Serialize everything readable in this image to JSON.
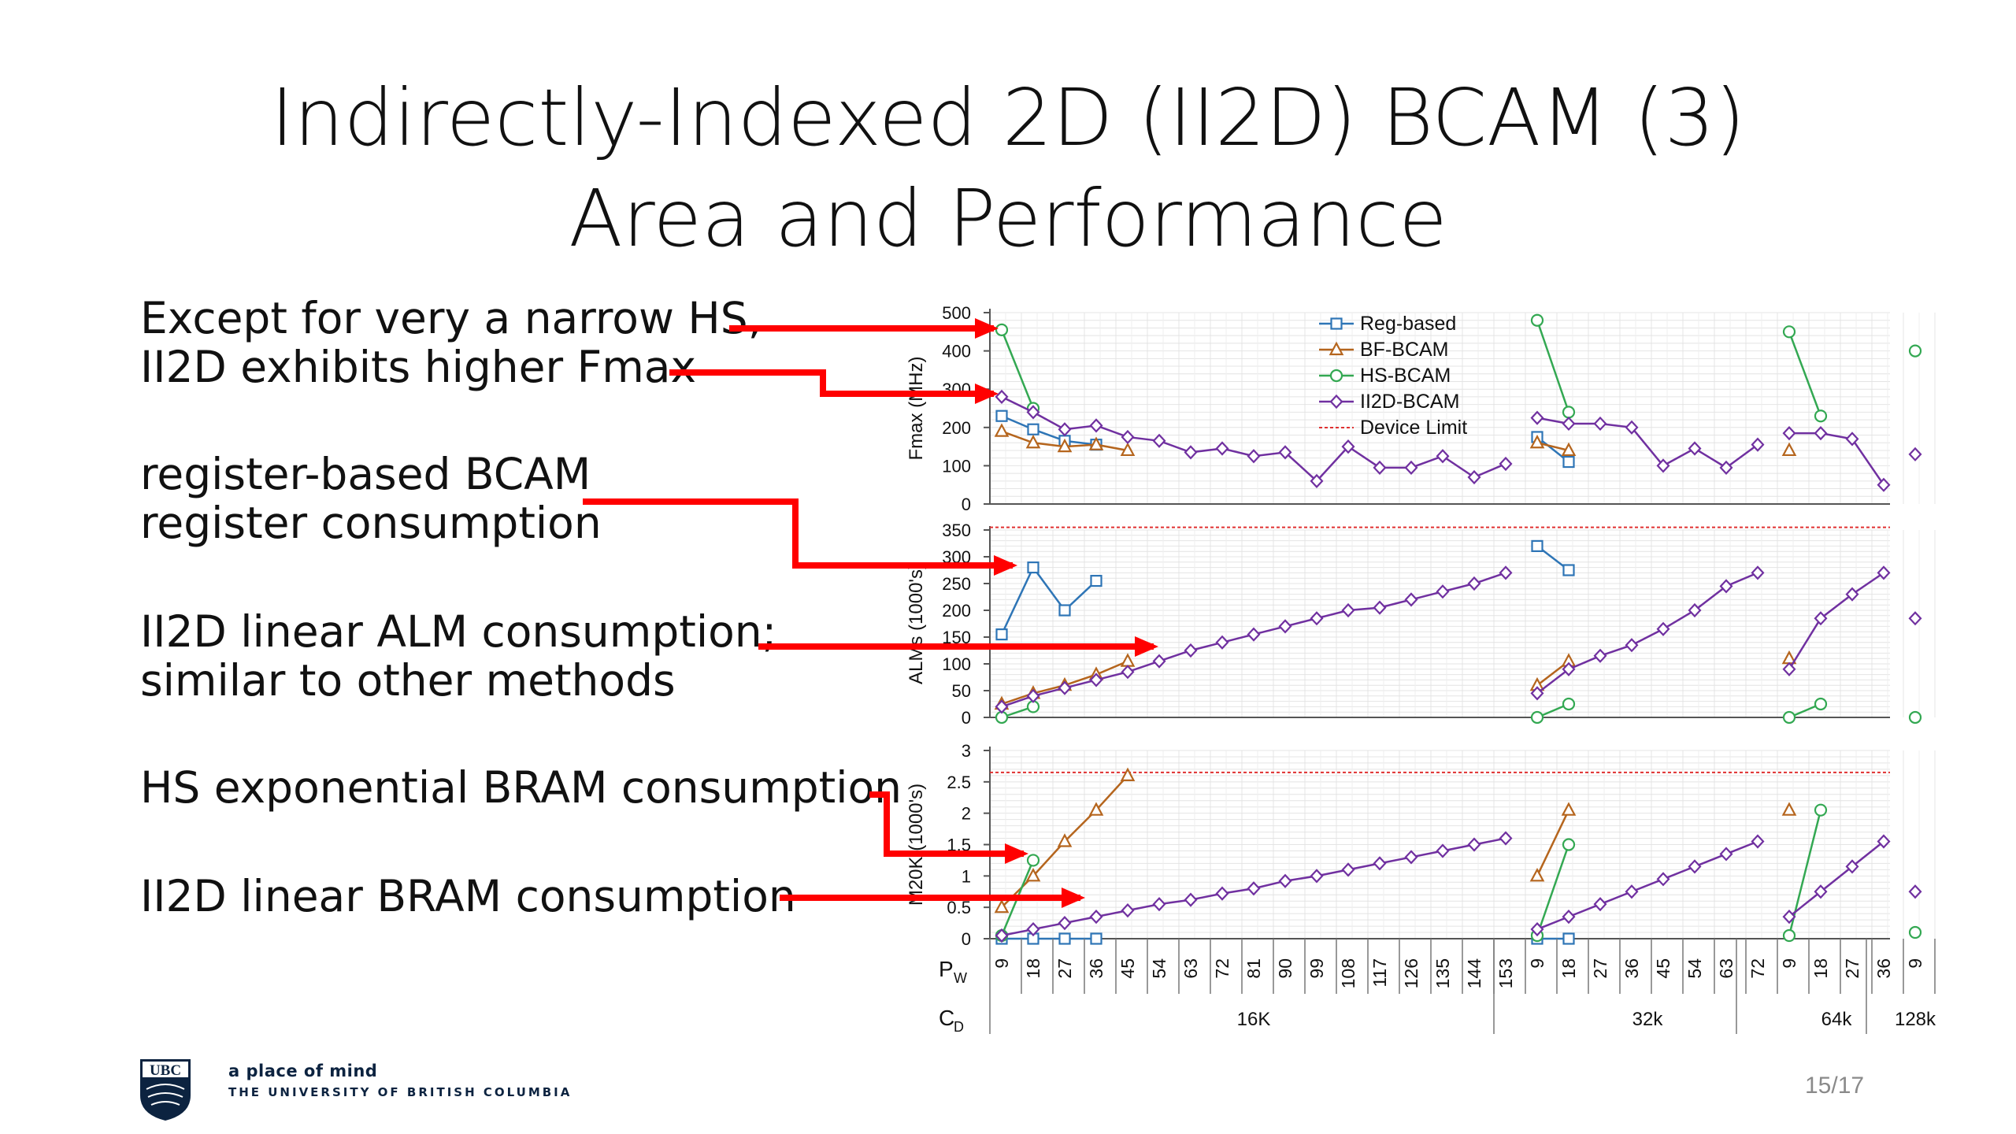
{
  "slide": {
    "title_line1": "Indirectly-Indexed 2D (II2D) BCAM (3)",
    "title_line2": "Area and Performance",
    "page_number": "15/17",
    "footer_tagline": "a place of mind",
    "footer_university": "THE UNIVERSITY OF BRITISH COLUMBIA",
    "logo_text": "UBC"
  },
  "annotations": [
    {
      "lines": [
        "Except for very a narrow HS,",
        "II2D exhibits higher Fmax"
      ]
    },
    {
      "lines": [
        "register-based BCAM",
        "register consumption"
      ]
    },
    {
      "lines": [
        "II2D linear ALM consumption;",
        "similar to other methods"
      ]
    },
    {
      "lines": [
        "HS exponential BRAM consumption"
      ]
    },
    {
      "lines": [
        "II2D linear BRAM consumption"
      ]
    }
  ],
  "chart_data": {
    "type": "line",
    "x_row_label": "P",
    "x_row_label_sub": "W",
    "group_row_label": "C",
    "group_row_label_sub": "D",
    "x_labels": [
      "9",
      "18",
      "27",
      "36",
      "45",
      "54",
      "63",
      "72",
      "81",
      "90",
      "99",
      "108",
      "117",
      "126",
      "135",
      "144",
      "153",
      "9",
      "18",
      "27",
      "36",
      "45",
      "54",
      "63",
      "72",
      "9",
      "18",
      "27",
      "36",
      "9"
    ],
    "groups": [
      {
        "label": "16K",
        "start": 0,
        "end": 16
      },
      {
        "label": "32k",
        "start": 17,
        "end": 24
      },
      {
        "label": "64k",
        "start": 25,
        "end": 28
      },
      {
        "label": "128k",
        "start": 29,
        "end": 29
      }
    ],
    "colors": {
      "Reg-based": "#2e75b6",
      "BF-BCAM": "#b5651d",
      "HS-BCAM": "#33a852",
      "II2D-BCAM": "#7030a0",
      "Device Limit": "#e03030",
      "grid": "#e4e4e4",
      "arrow": "#ff0000"
    },
    "legend": {
      "position": "top-right",
      "entries": [
        "Reg-based",
        "BF-BCAM",
        "HS-BCAM",
        "II2D-BCAM",
        "Device Limit"
      ]
    },
    "panels": [
      {
        "ylabel": "Fmax (MHz)",
        "ylim": [
          0,
          500
        ],
        "yticks": [
          "0",
          "100",
          "200",
          "300",
          "400",
          "500"
        ],
        "series": [
          {
            "name": "Reg-based",
            "segments": [
              [
                [
                  0,
                  230
                ],
                [
                  1,
                  195
                ],
                [
                  2,
                  165
                ],
                [
                  3,
                  155
                ]
              ],
              [
                [
                  17,
                  175
                ],
                [
                  18,
                  110
                ]
              ]
            ]
          },
          {
            "name": "BF-BCAM",
            "segments": [
              [
                [
                  0,
                  190
                ],
                [
                  1,
                  160
                ],
                [
                  2,
                  150
                ],
                [
                  3,
                  155
                ],
                [
                  4,
                  140
                ]
              ],
              [
                [
                  17,
                  160
                ],
                [
                  18,
                  140
                ]
              ],
              [
                [
                  25,
                  140
                ]
              ]
            ]
          },
          {
            "name": "HS-BCAM",
            "segments": [
              [
                [
                  0,
                  455
                ],
                [
                  1,
                  250
                ]
              ],
              [
                [
                  17,
                  480
                ],
                [
                  18,
                  240
                ]
              ],
              [
                [
                  25,
                  450
                ],
                [
                  26,
                  230
                ]
              ],
              [
                [
                  29,
                  400
                ]
              ]
            ]
          },
          {
            "name": "II2D-BCAM",
            "segments": [
              [
                [
                  0,
                  280
                ],
                [
                  1,
                  240
                ],
                [
                  2,
                  195
                ],
                [
                  3,
                  205
                ],
                [
                  4,
                  175
                ],
                [
                  5,
                  165
                ],
                [
                  6,
                  135
                ],
                [
                  7,
                  145
                ],
                [
                  8,
                  125
                ],
                [
                  9,
                  135
                ],
                [
                  10,
                  60
                ],
                [
                  11,
                  150
                ],
                [
                  12,
                  95
                ],
                [
                  13,
                  95
                ],
                [
                  14,
                  125
                ],
                [
                  15,
                  70
                ],
                [
                  16,
                  105
                ]
              ],
              [
                [
                  17,
                  225
                ],
                [
                  18,
                  210
                ],
                [
                  19,
                  210
                ],
                [
                  20,
                  200
                ],
                [
                  21,
                  100
                ],
                [
                  22,
                  145
                ],
                [
                  23,
                  95
                ],
                [
                  24,
                  155
                ]
              ],
              [
                [
                  25,
                  185
                ],
                [
                  26,
                  185
                ],
                [
                  27,
                  170
                ],
                [
                  28,
                  50
                ]
              ],
              [
                [
                  29,
                  130
                ]
              ]
            ]
          }
        ]
      },
      {
        "ylabel": "ALMs (1000's)",
        "ylim": [
          0,
          350
        ],
        "yticks": [
          "0",
          "50",
          "100",
          "150",
          "200",
          "250",
          "300",
          "350"
        ],
        "device_limit": 355,
        "series": [
          {
            "name": "Reg-based",
            "segments": [
              [
                [
                  0,
                  155
                ],
                [
                  1,
                  280
                ],
                [
                  2,
                  200
                ],
                [
                  3,
                  255
                ]
              ],
              [
                [
                  17,
                  320
                ],
                [
                  18,
                  275
                ]
              ]
            ]
          },
          {
            "name": "BF-BCAM",
            "segments": [
              [
                [
                  0,
                  25
                ],
                [
                  1,
                  45
                ],
                [
                  2,
                  60
                ],
                [
                  3,
                  80
                ],
                [
                  4,
                  105
                ]
              ],
              [
                [
                  17,
                  60
                ],
                [
                  18,
                  105
                ]
              ],
              [
                [
                  25,
                  110
                ]
              ]
            ]
          },
          {
            "name": "HS-BCAM",
            "segments": [
              [
                [
                  0,
                  0
                ],
                [
                  1,
                  20
                ]
              ],
              [
                [
                  17,
                  0
                ],
                [
                  18,
                  25
                ]
              ],
              [
                [
                  25,
                  0
                ],
                [
                  26,
                  25
                ]
              ],
              [
                [
                  29,
                  0
                ]
              ]
            ]
          },
          {
            "name": "II2D-BCAM",
            "segments": [
              [
                [
                  0,
                  20
                ],
                [
                  1,
                  40
                ],
                [
                  2,
                  55
                ],
                [
                  3,
                  70
                ],
                [
                  4,
                  85
                ],
                [
                  5,
                  105
                ],
                [
                  6,
                  125
                ],
                [
                  7,
                  140
                ],
                [
                  8,
                  155
                ],
                [
                  9,
                  170
                ],
                [
                  10,
                  185
                ],
                [
                  11,
                  200
                ],
                [
                  12,
                  205
                ],
                [
                  13,
                  220
                ],
                [
                  14,
                  235
                ],
                [
                  15,
                  250
                ],
                [
                  16,
                  270
                ]
              ],
              [
                [
                  17,
                  45
                ],
                [
                  18,
                  90
                ],
                [
                  19,
                  115
                ],
                [
                  20,
                  135
                ],
                [
                  21,
                  165
                ],
                [
                  22,
                  200
                ],
                [
                  23,
                  245
                ],
                [
                  24,
                  270
                ]
              ],
              [
                [
                  25,
                  90
                ],
                [
                  26,
                  185
                ],
                [
                  27,
                  230
                ],
                [
                  28,
                  270
                ]
              ],
              [
                [
                  29,
                  185
                ]
              ]
            ]
          }
        ]
      },
      {
        "ylabel": "M20K (1000's)",
        "ylim": [
          0,
          3
        ],
        "yticks": [
          "0",
          "0.5",
          "1",
          "1.5",
          "2",
          "2.5",
          "3"
        ],
        "device_limit": 2.65,
        "series": [
          {
            "name": "Reg-based",
            "segments": [
              [
                [
                  0,
                  0
                ],
                [
                  1,
                  0
                ],
                [
                  2,
                  0
                ],
                [
                  3,
                  0
                ]
              ],
              [
                [
                  17,
                  0
                ],
                [
                  18,
                  0
                ]
              ]
            ]
          },
          {
            "name": "BF-BCAM",
            "segments": [
              [
                [
                  0,
                  0.5
                ],
                [
                  1,
                  1.0
                ],
                [
                  2,
                  1.55
                ],
                [
                  3,
                  2.05
                ],
                [
                  4,
                  2.6
                ]
              ],
              [
                [
                  17,
                  1.0
                ],
                [
                  18,
                  2.05
                ]
              ],
              [
                [
                  25,
                  2.05
                ]
              ]
            ]
          },
          {
            "name": "HS-BCAM",
            "segments": [
              [
                [
                  0,
                  0.05
                ],
                [
                  1,
                  1.25
                ]
              ],
              [
                [
                  17,
                  0.05
                ],
                [
                  18,
                  1.5
                ]
              ],
              [
                [
                  25,
                  0.05
                ],
                [
                  26,
                  2.05
                ]
              ],
              [
                [
                  29,
                  0.1
                ]
              ]
            ]
          },
          {
            "name": "II2D-BCAM",
            "segments": [
              [
                [
                  0,
                  0.05
                ],
                [
                  1,
                  0.15
                ],
                [
                  2,
                  0.25
                ],
                [
                  3,
                  0.35
                ],
                [
                  4,
                  0.45
                ],
                [
                  5,
                  0.55
                ],
                [
                  6,
                  0.62
                ],
                [
                  7,
                  0.72
                ],
                [
                  8,
                  0.8
                ],
                [
                  9,
                  0.92
                ],
                [
                  10,
                  1.0
                ],
                [
                  11,
                  1.1
                ],
                [
                  12,
                  1.2
                ],
                [
                  13,
                  1.3
                ],
                [
                  14,
                  1.4
                ],
                [
                  15,
                  1.5
                ],
                [
                  16,
                  1.6
                ]
              ],
              [
                [
                  17,
                  0.15
                ],
                [
                  18,
                  0.35
                ],
                [
                  19,
                  0.55
                ],
                [
                  20,
                  0.75
                ],
                [
                  21,
                  0.95
                ],
                [
                  22,
                  1.15
                ],
                [
                  23,
                  1.35
                ],
                [
                  24,
                  1.55
                ]
              ],
              [
                [
                  25,
                  0.35
                ],
                [
                  26,
                  0.75
                ],
                [
                  27,
                  1.15
                ],
                [
                  28,
                  1.55
                ]
              ],
              [
                [
                  29,
                  0.75
                ]
              ]
            ]
          }
        ]
      }
    ]
  }
}
